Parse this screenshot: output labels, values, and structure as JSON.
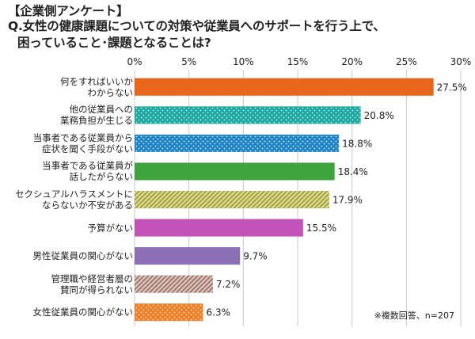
{
  "header": {
    "title_line1": "【企業側アンケート】",
    "title_line2": "Q.女性の健康課題についての対策や従業員へのサポートを行う上で、",
    "title_line3": "困っていること･課題となることは?"
  },
  "note": "※複数回答、n=207",
  "chart_data": {
    "type": "bar",
    "orientation": "horizontal",
    "xlim": [
      0,
      30
    ],
    "ticks": [
      "0%",
      "5%",
      "10%",
      "15%",
      "20%",
      "25%",
      "30%"
    ],
    "grid": true,
    "categories": [
      [
        "何をすればいいか",
        "わからない"
      ],
      [
        "他の従業員への",
        "業務負担が生じる"
      ],
      [
        "当事者である従業員から",
        "症状を聞く手段がない"
      ],
      [
        "当事者である従業員が",
        "話したがらない"
      ],
      [
        "セクシュアルハラスメントに",
        "ならないか不安がある"
      ],
      [
        "予算がない"
      ],
      [
        "男性従業員の関心がない"
      ],
      [
        "管理職や経営者層の",
        "賛同が得られない"
      ],
      [
        "女性従業員の関心がない"
      ]
    ],
    "values": [
      27.5,
      20.8,
      18.8,
      18.4,
      17.9,
      15.5,
      9.7,
      7.2,
      6.3
    ],
    "value_labels": [
      "27.5%",
      "20.8%",
      "18.8%",
      "18.4%",
      "17.9%",
      "15.5%",
      "9.7%",
      "7.2%",
      "6.3%"
    ],
    "colors": [
      "#e8651a",
      "#1aa9a0",
      "#1c84c7",
      "#3ea53e",
      "#a8a832",
      "#c353b8",
      "#8c6fb5",
      "#a87b72",
      "#f07f23"
    ],
    "patterns": [
      "solid",
      "dots",
      "dots",
      "solid",
      "hatch",
      "solid",
      "solid",
      "hatch",
      "dots"
    ]
  }
}
